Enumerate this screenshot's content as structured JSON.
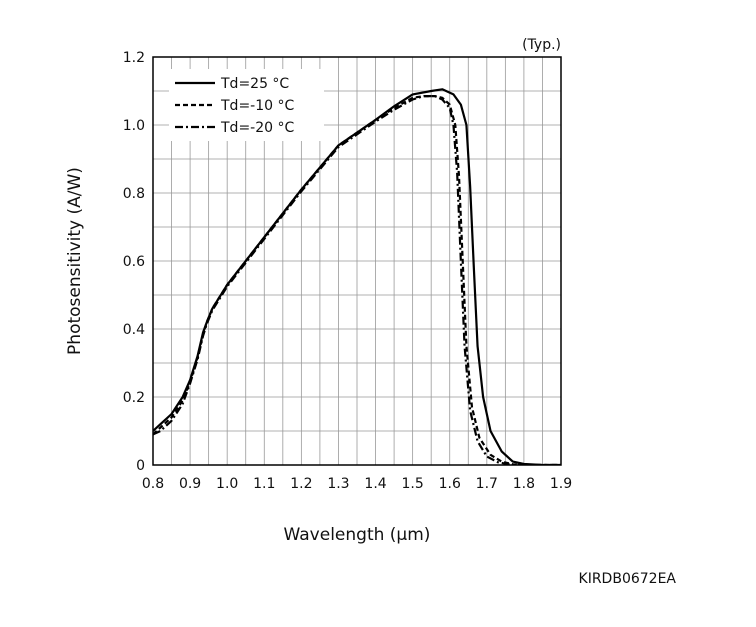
{
  "chart_data": {
    "type": "line",
    "title": "",
    "note": "(Typ.)",
    "xlabel": "Wavelength (µm)",
    "ylabel": "Photosensitivity (A/W)",
    "xlim": [
      0.8,
      1.9
    ],
    "ylim": [
      0,
      1.2
    ],
    "x_ticks": [
      "0.8",
      "0.9",
      "1.0",
      "1.1",
      "1.2",
      "1.3",
      "1.4",
      "1.5",
      "1.6",
      "1.7",
      "1.8",
      "1.9"
    ],
    "y_ticks": [
      "0",
      "0.2",
      "0.4",
      "0.6",
      "0.8",
      "1.0",
      "1.2"
    ],
    "grid": true,
    "legend_position": "top-left",
    "series": [
      {
        "name": "Td=25 °C",
        "style": "solid",
        "x": [
          0.8,
          0.82,
          0.85,
          0.88,
          0.9,
          0.92,
          0.935,
          0.945,
          0.96,
          1.0,
          1.1,
          1.2,
          1.3,
          1.4,
          1.45,
          1.5,
          1.55,
          1.58,
          1.61,
          1.63,
          1.645,
          1.655,
          1.665,
          1.675,
          1.69,
          1.71,
          1.74,
          1.77,
          1.8,
          1.85,
          1.9
        ],
        "values": [
          0.1,
          0.12,
          0.15,
          0.2,
          0.25,
          0.32,
          0.39,
          0.42,
          0.46,
          0.53,
          0.67,
          0.81,
          0.94,
          1.015,
          1.055,
          1.09,
          1.1,
          1.105,
          1.09,
          1.06,
          1.0,
          0.82,
          0.58,
          0.35,
          0.2,
          0.1,
          0.04,
          0.01,
          0.003,
          0.0,
          0.0
        ]
      },
      {
        "name": "Td=-10 °C",
        "style": "dashed",
        "x": [
          0.8,
          0.82,
          0.85,
          0.88,
          0.9,
          0.92,
          0.935,
          0.945,
          0.96,
          1.0,
          1.1,
          1.2,
          1.3,
          1.4,
          1.45,
          1.5,
          1.53,
          1.56,
          1.58,
          1.6,
          1.615,
          1.625,
          1.635,
          1.645,
          1.66,
          1.68,
          1.71,
          1.74,
          1.77,
          1.8,
          1.9
        ],
        "values": [
          0.09,
          0.11,
          0.14,
          0.19,
          0.245,
          0.315,
          0.385,
          0.42,
          0.46,
          0.53,
          0.67,
          0.81,
          0.94,
          1.015,
          1.05,
          1.08,
          1.085,
          1.085,
          1.08,
          1.06,
          1.0,
          0.85,
          0.6,
          0.35,
          0.17,
          0.08,
          0.03,
          0.01,
          0.002,
          0.0,
          0.0
        ]
      },
      {
        "name": "Td=-20 °C",
        "style": "dashdot",
        "x": [
          0.8,
          0.82,
          0.85,
          0.88,
          0.9,
          0.92,
          0.935,
          0.945,
          0.96,
          1.0,
          1.1,
          1.2,
          1.3,
          1.4,
          1.45,
          1.5,
          1.53,
          1.56,
          1.58,
          1.6,
          1.61,
          1.62,
          1.63,
          1.64,
          1.655,
          1.675,
          1.7,
          1.73,
          1.76,
          1.8,
          1.9
        ],
        "values": [
          0.09,
          0.1,
          0.13,
          0.18,
          0.24,
          0.31,
          0.38,
          0.415,
          0.455,
          0.525,
          0.665,
          0.805,
          0.935,
          1.01,
          1.045,
          1.075,
          1.085,
          1.085,
          1.075,
          1.05,
          1.0,
          0.86,
          0.6,
          0.35,
          0.16,
          0.07,
          0.025,
          0.008,
          0.002,
          0.0,
          0.0
        ]
      }
    ]
  },
  "figure_code": "KIRDB0672EA"
}
